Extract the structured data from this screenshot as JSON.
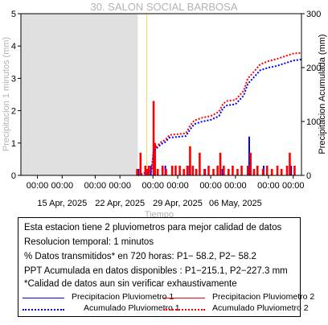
{
  "chart_data": {
    "type": "bar",
    "title": "30. SALON SOCIAL BARBOSA",
    "xlabel": "Tiempo",
    "ylabel_left": "Precipitacion 1 minutos (mm)",
    "ylabel_right": "Precipitacion Acumulada (mm)",
    "x_range": [
      "2025-04-10",
      "2025-05-14"
    ],
    "ylim_left": [
      0,
      5
    ],
    "ylim_right": [
      0,
      300
    ],
    "yticks_left": [
      0,
      1,
      2,
      3,
      4,
      5
    ],
    "yticks_right": [
      0,
      100,
      200,
      300
    ],
    "xtick_dates": [
      "2025-04-12",
      "2025-04-15",
      "2025-04-19",
      "2025-04-22",
      "2025-04-26",
      "2025-04-29",
      "2025-05-03",
      "2025-05-06",
      "2025-05-10",
      "2025-05-13"
    ],
    "xtick_time_label": "00:00",
    "xtick_date_labels": [
      {
        "date": "2025-04-15",
        "label": "15 Apr, 2025"
      },
      {
        "date": "2025-04-22",
        "label": "22 Apr, 2025"
      },
      {
        "date": "2025-04-29",
        "label": "29 Apr, 2025"
      },
      {
        "date": "2025-05-06",
        "label": "06 May, 2025"
      }
    ],
    "no_data_period": [
      "2025-04-10",
      "2025-04-24T04:00"
    ],
    "marker_line_date": "2025-04-25T06:00",
    "colors": {
      "p1": "#0000ff",
      "p2": "#ff0000",
      "no_data_shade": "#e0e0e0",
      "marker_line": "#e8e060"
    },
    "series": [
      {
        "name": "Precipitacion Pluviometro 1",
        "kind": "bars",
        "axis": "left",
        "points": [
          {
            "x": "2025-04-24T06:00",
            "y": 0.2
          },
          {
            "x": "2025-04-25T18:00",
            "y": 0.3
          },
          {
            "x": "2025-04-26T03:00",
            "y": 0.8
          },
          {
            "x": "2025-04-27T12:00",
            "y": 0.3
          },
          {
            "x": "2025-04-30T10:00",
            "y": 0.3
          },
          {
            "x": "2025-05-02T08:00",
            "y": 0.2
          },
          {
            "x": "2025-05-04T10:00",
            "y": 0.2
          },
          {
            "x": "2025-05-07T16:00",
            "y": 1.2
          },
          {
            "x": "2025-05-09T10:00",
            "y": 0.3
          },
          {
            "x": "2025-05-12T18:00",
            "y": 0.3
          }
        ]
      },
      {
        "name": "Precipitacion Pluviometro 2",
        "kind": "bars",
        "axis": "left",
        "points": [
          {
            "x": "2025-04-24T02:00",
            "y": 0.2
          },
          {
            "x": "2025-04-24T12:00",
            "y": 0.7
          },
          {
            "x": "2025-04-25T02:00",
            "y": 0.3
          },
          {
            "x": "2025-04-25T08:00",
            "y": 0.2
          },
          {
            "x": "2025-04-25T12:00",
            "y": 0.3
          },
          {
            "x": "2025-04-26T02:00",
            "y": 2.3
          },
          {
            "x": "2025-04-26T06:00",
            "y": 1.0
          },
          {
            "x": "2025-04-26T14:00",
            "y": 0.2
          },
          {
            "x": "2025-04-27T04:00",
            "y": 0.3
          },
          {
            "x": "2025-04-27T14:00",
            "y": 0.2
          },
          {
            "x": "2025-04-28T08:00",
            "y": 0.3
          },
          {
            "x": "2025-04-28T18:00",
            "y": 0.3
          },
          {
            "x": "2025-04-29T06:00",
            "y": 0.3
          },
          {
            "x": "2025-04-29T18:00",
            "y": 0.2
          },
          {
            "x": "2025-04-30T04:00",
            "y": 0.3
          },
          {
            "x": "2025-04-30T12:00",
            "y": 0.9
          },
          {
            "x": "2025-04-30T20:00",
            "y": 0.3
          },
          {
            "x": "2025-05-01T06:00",
            "y": 0.2
          },
          {
            "x": "2025-05-01T16:00",
            "y": 0.7
          },
          {
            "x": "2025-05-02T06:00",
            "y": 0.2
          },
          {
            "x": "2025-05-02T18:00",
            "y": 0.3
          },
          {
            "x": "2025-05-03T08:00",
            "y": 0.2
          },
          {
            "x": "2025-05-03T20:00",
            "y": 0.3
          },
          {
            "x": "2025-05-04T04:00",
            "y": 0.7
          },
          {
            "x": "2025-05-04T14:00",
            "y": 0.3
          },
          {
            "x": "2025-05-05T04:00",
            "y": 0.2
          },
          {
            "x": "2025-05-05T16:00",
            "y": 0.3
          },
          {
            "x": "2025-05-06T06:00",
            "y": 0.2
          },
          {
            "x": "2025-05-06T18:00",
            "y": 0.3
          },
          {
            "x": "2025-05-07T12:00",
            "y": 0.3
          },
          {
            "x": "2025-05-07T20:00",
            "y": 0.7
          },
          {
            "x": "2025-05-08T06:00",
            "y": 0.2
          },
          {
            "x": "2025-05-08T16:00",
            "y": 0.3
          },
          {
            "x": "2025-05-09T08:00",
            "y": 0.2
          },
          {
            "x": "2025-05-09T20:00",
            "y": 0.3
          },
          {
            "x": "2025-05-10T10:00",
            "y": 0.2
          },
          {
            "x": "2025-05-11T02:00",
            "y": 0.3
          },
          {
            "x": "2025-05-11T14:00",
            "y": 0.2
          },
          {
            "x": "2025-05-12T06:00",
            "y": 0.3
          },
          {
            "x": "2025-05-12T14:00",
            "y": 0.7
          },
          {
            "x": "2025-05-13T04:00",
            "y": 0.3
          }
        ]
      },
      {
        "name": "Acumulado Pluviometro 1",
        "kind": "dotted-line",
        "axis": "right",
        "points": [
          {
            "x": "2025-04-24T04:00",
            "y": 0
          },
          {
            "x": "2025-04-25T20:00",
            "y": 8
          },
          {
            "x": "2025-04-26T02:00",
            "y": 45
          },
          {
            "x": "2025-04-27T00:00",
            "y": 58
          },
          {
            "x": "2025-04-27T12:00",
            "y": 62
          },
          {
            "x": "2025-04-28T00:00",
            "y": 70
          },
          {
            "x": "2025-04-30T00:00",
            "y": 73
          },
          {
            "x": "2025-04-30T12:00",
            "y": 85
          },
          {
            "x": "2025-05-01T00:00",
            "y": 95
          },
          {
            "x": "2025-05-02T00:00",
            "y": 100
          },
          {
            "x": "2025-05-03T00:00",
            "y": 103
          },
          {
            "x": "2025-05-04T00:00",
            "y": 110
          },
          {
            "x": "2025-05-04T12:00",
            "y": 125
          },
          {
            "x": "2025-05-05T00:00",
            "y": 130
          },
          {
            "x": "2025-05-06T00:00",
            "y": 132
          },
          {
            "x": "2025-05-07T00:00",
            "y": 148
          },
          {
            "x": "2025-05-07T12:00",
            "y": 170
          },
          {
            "x": "2025-05-08T00:00",
            "y": 178
          },
          {
            "x": "2025-05-09T00:00",
            "y": 195
          },
          {
            "x": "2025-05-10T00:00",
            "y": 200
          },
          {
            "x": "2025-05-11T00:00",
            "y": 203
          },
          {
            "x": "2025-05-12T00:00",
            "y": 208
          },
          {
            "x": "2025-05-13T00:00",
            "y": 213
          },
          {
            "x": "2025-05-14T00:00",
            "y": 215.1
          }
        ]
      },
      {
        "name": "Acumulado Pluviometro 2",
        "kind": "dotted-line",
        "axis": "right",
        "points": [
          {
            "x": "2025-04-24T04:00",
            "y": 0
          },
          {
            "x": "2025-04-25T20:00",
            "y": 10
          },
          {
            "x": "2025-04-26T02:00",
            "y": 48
          },
          {
            "x": "2025-04-27T00:00",
            "y": 62
          },
          {
            "x": "2025-04-27T12:00",
            "y": 66
          },
          {
            "x": "2025-04-28T00:00",
            "y": 75
          },
          {
            "x": "2025-04-30T00:00",
            "y": 78
          },
          {
            "x": "2025-04-30T12:00",
            "y": 92
          },
          {
            "x": "2025-05-01T00:00",
            "y": 102
          },
          {
            "x": "2025-05-02T00:00",
            "y": 107
          },
          {
            "x": "2025-05-03T00:00",
            "y": 110
          },
          {
            "x": "2025-05-04T00:00",
            "y": 118
          },
          {
            "x": "2025-05-04T12:00",
            "y": 133
          },
          {
            "x": "2025-05-05T00:00",
            "y": 138
          },
          {
            "x": "2025-05-06T00:00",
            "y": 140
          },
          {
            "x": "2025-05-07T00:00",
            "y": 157
          },
          {
            "x": "2025-05-07T12:00",
            "y": 180
          },
          {
            "x": "2025-05-08T00:00",
            "y": 188
          },
          {
            "x": "2025-05-09T00:00",
            "y": 206
          },
          {
            "x": "2025-05-10T00:00",
            "y": 212
          },
          {
            "x": "2025-05-11T00:00",
            "y": 216
          },
          {
            "x": "2025-05-12T00:00",
            "y": 221
          },
          {
            "x": "2025-05-13T00:00",
            "y": 226
          },
          {
            "x": "2025-05-14T00:00",
            "y": 227.3
          }
        ]
      }
    ]
  },
  "info": {
    "line1": "Esta estacion tiene 2 pluviometros para mejor calidad de datos",
    "line2": "Resolucion temporal: 1 minutos",
    "line3": "% Datos transmitidos* en 720 horas: P1− 58.2, P2− 58.2",
    "line4": "PPT Acumulada en datos disponibles : P1−215.1, P2−227.3 mm",
    "line5": "*Calidad de datos aun sin verificar exhaustivamente"
  },
  "legend": {
    "p1_precip": "Precipitacion Pluviometro 1",
    "p2_precip": "Precipitacion Pluviometro 2",
    "p1_acum": "Acumulado Pluviometro 1",
    "p2_acum": "Acumulado Pluviometro 2"
  }
}
